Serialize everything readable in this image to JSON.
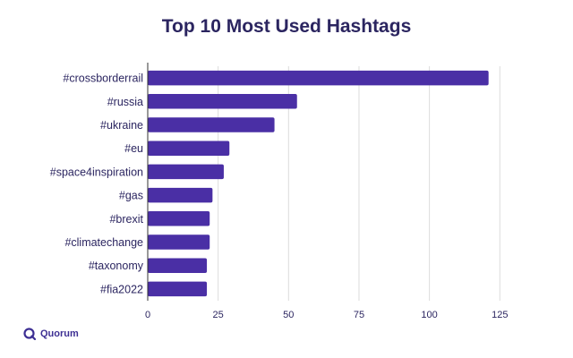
{
  "chart_data": {
    "type": "bar",
    "orientation": "horizontal",
    "title": "Top 10 Most Used Hashtags",
    "xlabel": "",
    "ylabel": "",
    "categories": [
      "#crossborderrail",
      "#russia",
      "#ukraine",
      "#eu",
      "#space4inspiration",
      "#gas",
      "#brexit",
      "#climatechange",
      "#taxonomy",
      "#fia2022"
    ],
    "values": [
      121,
      53,
      45,
      29,
      27,
      23,
      22,
      22,
      21,
      21
    ],
    "xlim": [
      0,
      130
    ],
    "xticks": [
      0,
      25,
      50,
      75,
      100,
      125
    ],
    "grid": "vertical",
    "bar_color": "#4a2fa5"
  },
  "brand": {
    "name": "Quorum",
    "icon": "quorum-logo-icon"
  }
}
